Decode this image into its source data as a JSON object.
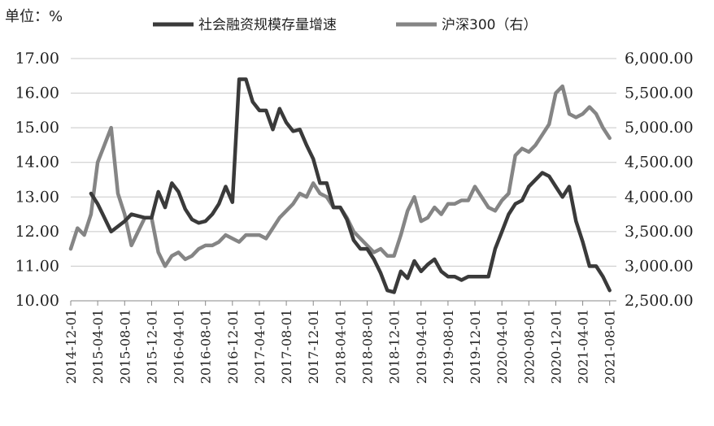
{
  "unit_label": "单位：%",
  "chart_data": {
    "type": "line",
    "title": "",
    "xlabel": "",
    "ylabel": "单位：%",
    "legend_position": "top",
    "grid": true,
    "y_left": {
      "min": 10,
      "max": 17,
      "ticks": [
        "10.00",
        "11.00",
        "12.00",
        "13.00",
        "14.00",
        "15.00",
        "16.00",
        "17.00"
      ]
    },
    "y_right": {
      "min": 2500,
      "max": 6000,
      "ticks": [
        "2,500.00",
        "3,000.00",
        "3,500.00",
        "4,000.00",
        "4,500.00",
        "5,000.00",
        "5,500.00",
        "6,000.00"
      ]
    },
    "x_start": "2014-12",
    "x_end": "2021-09",
    "x_ticks": [
      "2014-12-01",
      "2015-04-01",
      "2015-08-01",
      "2015-12-01",
      "2016-04-01",
      "2016-08-01",
      "2016-12-01",
      "2017-04-01",
      "2017-08-01",
      "2017-12-01",
      "2018-04-01",
      "2018-08-01",
      "2018-12-01",
      "2019-04-01",
      "2019-08-01",
      "2019-12-01",
      "2020-04-01",
      "2020-08-01",
      "2020-12-01",
      "2021-04-01",
      "2021-08-01"
    ],
    "series": [
      {
        "name": "社会融资规模存量增速",
        "axis": "left",
        "color": "#3a3a3a",
        "points": [
          [
            "2015-03",
            13.1
          ],
          [
            "2015-04",
            12.8
          ],
          [
            "2015-05",
            12.4
          ],
          [
            "2015-06",
            12.0
          ],
          [
            "2015-07",
            12.15
          ],
          [
            "2015-08",
            12.3
          ],
          [
            "2015-09",
            12.5
          ],
          [
            "2015-10",
            12.45
          ],
          [
            "2015-11",
            12.4
          ],
          [
            "2015-12",
            12.4
          ],
          [
            "2016-01",
            13.15
          ],
          [
            "2016-02",
            12.7
          ],
          [
            "2016-03",
            13.4
          ],
          [
            "2016-04",
            13.15
          ],
          [
            "2016-05",
            12.65
          ],
          [
            "2016-06",
            12.35
          ],
          [
            "2016-07",
            12.25
          ],
          [
            "2016-08",
            12.3
          ],
          [
            "2016-09",
            12.5
          ],
          [
            "2016-10",
            12.8
          ],
          [
            "2016-11",
            13.3
          ],
          [
            "2016-12",
            12.85
          ],
          [
            "2017-01",
            16.4
          ],
          [
            "2017-02",
            16.4
          ],
          [
            "2017-03",
            15.75
          ],
          [
            "2017-04",
            15.5
          ],
          [
            "2017-05",
            15.5
          ],
          [
            "2017-06",
            14.95
          ],
          [
            "2017-07",
            15.55
          ],
          [
            "2017-08",
            15.15
          ],
          [
            "2017-09",
            14.9
          ],
          [
            "2017-10",
            14.95
          ],
          [
            "2017-11",
            14.5
          ],
          [
            "2017-12",
            14.1
          ],
          [
            "2018-01",
            13.4
          ],
          [
            "2018-02",
            13.4
          ],
          [
            "2018-03",
            12.7
          ],
          [
            "2018-04",
            12.7
          ],
          [
            "2018-05",
            12.35
          ],
          [
            "2018-06",
            11.75
          ],
          [
            "2018-07",
            11.5
          ],
          [
            "2018-08",
            11.5
          ],
          [
            "2018-09",
            11.2
          ],
          [
            "2018-10",
            10.8
          ],
          [
            "2018-11",
            10.3
          ],
          [
            "2018-12",
            10.25
          ],
          [
            "2019-01",
            10.85
          ],
          [
            "2019-02",
            10.65
          ],
          [
            "2019-03",
            11.15
          ],
          [
            "2019-04",
            10.85
          ],
          [
            "2019-05",
            11.05
          ],
          [
            "2019-06",
            11.2
          ],
          [
            "2019-07",
            10.85
          ],
          [
            "2019-08",
            10.7
          ],
          [
            "2019-09",
            10.7
          ],
          [
            "2019-10",
            10.6
          ],
          [
            "2019-11",
            10.7
          ],
          [
            "2019-12",
            10.7
          ],
          [
            "2020-01",
            10.7
          ],
          [
            "2020-02",
            10.7
          ],
          [
            "2020-03",
            11.5
          ],
          [
            "2020-04",
            12.0
          ],
          [
            "2020-05",
            12.5
          ],
          [
            "2020-06",
            12.8
          ],
          [
            "2020-07",
            12.9
          ],
          [
            "2020-08",
            13.3
          ],
          [
            "2020-09",
            13.5
          ],
          [
            "2020-10",
            13.7
          ],
          [
            "2020-11",
            13.6
          ],
          [
            "2020-12",
            13.3
          ],
          [
            "2021-01",
            13.0
          ],
          [
            "2021-02",
            13.3
          ],
          [
            "2021-03",
            12.3
          ],
          [
            "2021-04",
            11.7
          ],
          [
            "2021-05",
            11.0
          ],
          [
            "2021-06",
            11.0
          ],
          [
            "2021-07",
            10.7
          ],
          [
            "2021-08",
            10.3
          ]
        ]
      },
      {
        "name": "沪深300（右）",
        "axis": "right",
        "color": "#858585",
        "points": [
          [
            "2014-12",
            3250
          ],
          [
            "2015-01",
            3550
          ],
          [
            "2015-02",
            3450
          ],
          [
            "2015-03",
            3750
          ],
          [
            "2015-04",
            4500
          ],
          [
            "2015-05",
            4750
          ],
          [
            "2015-06",
            5000
          ],
          [
            "2015-07",
            4050
          ],
          [
            "2015-08",
            3750
          ],
          [
            "2015-09",
            3300
          ],
          [
            "2015-10",
            3500
          ],
          [
            "2015-11",
            3700
          ],
          [
            "2015-12",
            3700
          ],
          [
            "2016-01",
            3200
          ],
          [
            "2016-02",
            3000
          ],
          [
            "2016-03",
            3150
          ],
          [
            "2016-04",
            3200
          ],
          [
            "2016-05",
            3100
          ],
          [
            "2016-06",
            3150
          ],
          [
            "2016-07",
            3250
          ],
          [
            "2016-08",
            3300
          ],
          [
            "2016-09",
            3300
          ],
          [
            "2016-10",
            3350
          ],
          [
            "2016-11",
            3450
          ],
          [
            "2016-12",
            3400
          ],
          [
            "2017-01",
            3350
          ],
          [
            "2017-02",
            3450
          ],
          [
            "2017-03",
            3450
          ],
          [
            "2017-04",
            3450
          ],
          [
            "2017-05",
            3400
          ],
          [
            "2017-06",
            3550
          ],
          [
            "2017-07",
            3700
          ],
          [
            "2017-08",
            3800
          ],
          [
            "2017-09",
            3900
          ],
          [
            "2017-10",
            4050
          ],
          [
            "2017-11",
            4000
          ],
          [
            "2017-12",
            4200
          ],
          [
            "2018-01",
            4050
          ],
          [
            "2018-02",
            4000
          ],
          [
            "2018-03",
            3850
          ],
          [
            "2018-04",
            3850
          ],
          [
            "2018-05",
            3700
          ],
          [
            "2018-06",
            3500
          ],
          [
            "2018-07",
            3400
          ],
          [
            "2018-08",
            3300
          ],
          [
            "2018-09",
            3200
          ],
          [
            "2018-10",
            3250
          ],
          [
            "2018-11",
            3150
          ],
          [
            "2018-12",
            3150
          ],
          [
            "2019-01",
            3450
          ],
          [
            "2019-02",
            3800
          ],
          [
            "2019-03",
            4000
          ],
          [
            "2019-04",
            3650
          ],
          [
            "2019-05",
            3700
          ],
          [
            "2019-06",
            3850
          ],
          [
            "2019-07",
            3750
          ],
          [
            "2019-08",
            3900
          ],
          [
            "2019-09",
            3900
          ],
          [
            "2019-10",
            3950
          ],
          [
            "2019-11",
            3950
          ],
          [
            "2019-12",
            4150
          ],
          [
            "2020-01",
            4000
          ],
          [
            "2020-02",
            3850
          ],
          [
            "2020-03",
            3800
          ],
          [
            "2020-04",
            3950
          ],
          [
            "2020-05",
            4050
          ],
          [
            "2020-06",
            4600
          ],
          [
            "2020-07",
            4700
          ],
          [
            "2020-08",
            4650
          ],
          [
            "2020-09",
            4750
          ],
          [
            "2020-10",
            4900
          ],
          [
            "2020-11",
            5050
          ],
          [
            "2020-12",
            5500
          ],
          [
            "2021-01",
            5600
          ],
          [
            "2021-02",
            5200
          ],
          [
            "2021-03",
            5150
          ],
          [
            "2021-04",
            5200
          ],
          [
            "2021-05",
            5300
          ],
          [
            "2021-06",
            5200
          ],
          [
            "2021-07",
            5000
          ],
          [
            "2021-08",
            4850
          ]
        ]
      }
    ]
  }
}
